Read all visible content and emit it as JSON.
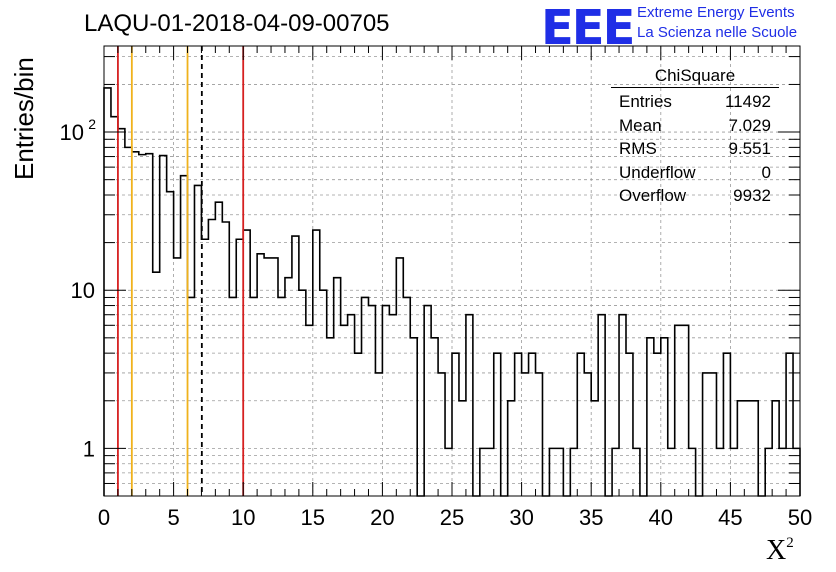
{
  "header": {
    "title": "LAQU-01-2018-04-09-00705",
    "logo_mark": "EEE",
    "logo_line1": "Extreme Energy Events",
    "logo_line2": "La Scienza nelle Scuole"
  },
  "stats_box": {
    "name": "ChiSquare",
    "rows": [
      {
        "label": "Entries",
        "value": "11492"
      },
      {
        "label": "Mean",
        "value": "7.029"
      },
      {
        "label": "RMS",
        "value": "9.551"
      },
      {
        "label": "Underflow",
        "value": "0"
      },
      {
        "label": "Overflow",
        "value": "9932"
      }
    ]
  },
  "colors": {
    "histogram": "#000000",
    "red_line": "#d62020",
    "orange_line": "#f0b21c",
    "dashed_line": "#000000",
    "logo": "#1f2ee6",
    "grid": "#9a9a9a"
  },
  "chart_data": {
    "type": "histogram",
    "title": "LAQU-01-2018-04-09-00705",
    "xlabel": "X",
    "xlabel_superscript": "2",
    "ylabel": "Entries/bin",
    "x_range": [
      0,
      50
    ],
    "y_range": [
      0.5,
      350
    ],
    "y_scale": "log",
    "grid": true,
    "bin_width": 0.5,
    "x_ticks": [
      "0",
      "5",
      "10",
      "15",
      "20",
      "25",
      "30",
      "35",
      "40",
      "45",
      "50"
    ],
    "y_ticks": [
      {
        "value": 1,
        "label": "1"
      },
      {
        "value": 10,
        "label": "10"
      },
      {
        "value": 100,
        "label": "10",
        "exponent": "2"
      }
    ],
    "bin_values": [
      190,
      125,
      105,
      80,
      75,
      72,
      73,
      13,
      71,
      42,
      16,
      53,
      9,
      46,
      21,
      28,
      36,
      27,
      9,
      21,
      24,
      9,
      17,
      16,
      16,
      9,
      12,
      22,
      10,
      6,
      24,
      10,
      5,
      12,
      6,
      7,
      4,
      9,
      8,
      3,
      8,
      7,
      16,
      9,
      5,
      0.5,
      8,
      5,
      3,
      1,
      4,
      2,
      7,
      0.5,
      1,
      1,
      4,
      0.5,
      2,
      4,
      3,
      4,
      3,
      0.5,
      1,
      1,
      0.5,
      1,
      4,
      3,
      2,
      7,
      0.5,
      1,
      7,
      4,
      1,
      0.5,
      5,
      4,
      5,
      1,
      6,
      6,
      1,
      0.5,
      3,
      3,
      1,
      4,
      1,
      2,
      2,
      2,
      0.5,
      1,
      2,
      1,
      4,
      1
    ],
    "vertical_lines": [
      {
        "x": 1,
        "color": "red",
        "style": "solid"
      },
      {
        "x": 2,
        "color": "orange",
        "style": "solid"
      },
      {
        "x": 6,
        "color": "orange",
        "style": "solid"
      },
      {
        "x": 7.029,
        "color": "black",
        "style": "dashed"
      },
      {
        "x": 10,
        "color": "red",
        "style": "solid"
      }
    ]
  }
}
